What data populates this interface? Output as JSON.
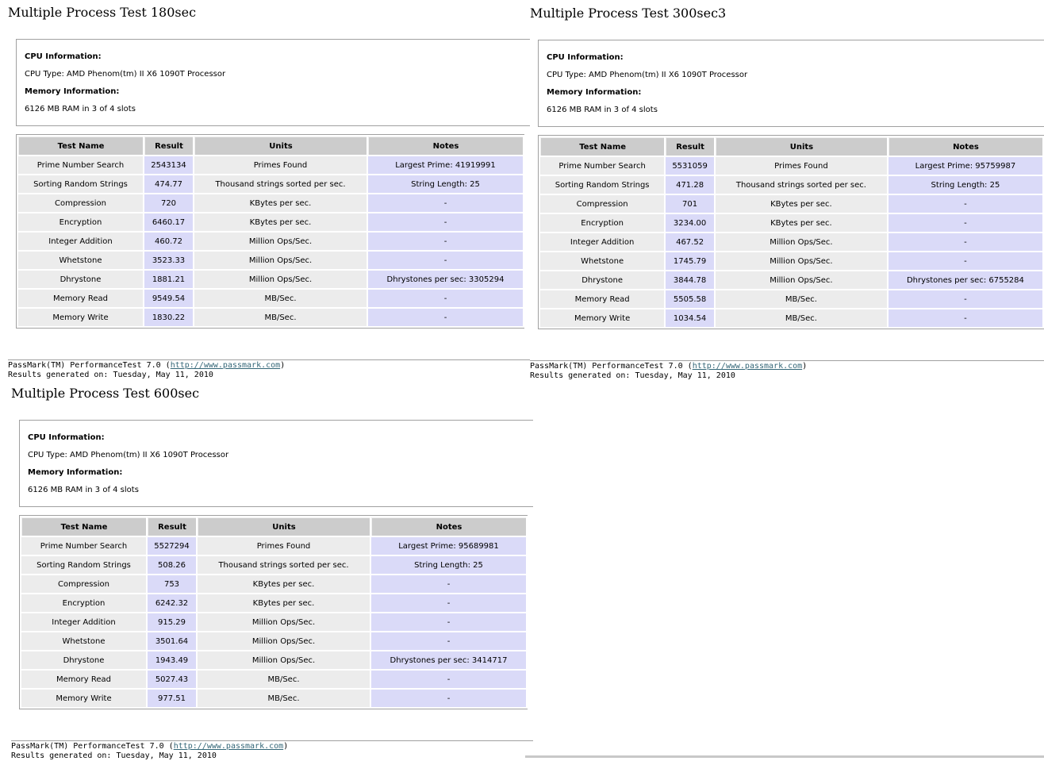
{
  "reports": [
    {
      "title": "Multiple Process Test 180sec",
      "cpu_heading": "CPU Information:",
      "cpu_type": "CPU Type: AMD Phenom(tm) II X6 1090T Processor",
      "mem_heading": "Memory Information:",
      "mem_value": "6126 MB RAM in 3 of 4 slots",
      "headers": [
        "Test Name",
        "Result",
        "Units",
        "Notes"
      ],
      "rows": [
        [
          "Prime Number Search",
          "2543134",
          "Primes Found",
          "Largest Prime: 41919991"
        ],
        [
          "Sorting Random Strings",
          "474.77",
          "Thousand strings sorted per sec.",
          "String Length: 25"
        ],
        [
          "Compression",
          "720",
          "KBytes per sec.",
          "-"
        ],
        [
          "Encryption",
          "6460.17",
          "KBytes per sec.",
          "-"
        ],
        [
          "Integer Addition",
          "460.72",
          "Million Ops/Sec.",
          "-"
        ],
        [
          "Whetstone",
          "3523.33",
          "Million Ops/Sec.",
          "-"
        ],
        [
          "Dhrystone",
          "1881.21",
          "Million Ops/Sec.",
          "Dhrystones per sec: 3305294"
        ],
        [
          "Memory Read",
          "9549.54",
          "MB/Sec.",
          "-"
        ],
        [
          "Memory Write",
          "1830.22",
          "MB/Sec.",
          "-"
        ]
      ],
      "footer_prefix": "PassMark(TM) PerformanceTest 7.0 (",
      "footer_link": "http://www.passmark.com",
      "footer_suffix": ")",
      "footer_date": "Results generated on: Tuesday, May 11, 2010"
    },
    {
      "title": "Multiple Process Test 300sec3",
      "cpu_heading": "CPU Information:",
      "cpu_type": "CPU Type: AMD Phenom(tm) II X6 1090T Processor",
      "mem_heading": "Memory Information:",
      "mem_value": "6126 MB RAM in 3 of 4 slots",
      "headers": [
        "Test Name",
        "Result",
        "Units",
        "Notes"
      ],
      "rows": [
        [
          "Prime Number Search",
          "5531059",
          "Primes Found",
          "Largest Prime: 95759987"
        ],
        [
          "Sorting Random Strings",
          "471.28",
          "Thousand strings sorted per sec.",
          "String Length: 25"
        ],
        [
          "Compression",
          "701",
          "KBytes per sec.",
          "-"
        ],
        [
          "Encryption",
          "3234.00",
          "KBytes per sec.",
          "-"
        ],
        [
          "Integer Addition",
          "467.52",
          "Million Ops/Sec.",
          "-"
        ],
        [
          "Whetstone",
          "1745.79",
          "Million Ops/Sec.",
          "-"
        ],
        [
          "Dhrystone",
          "3844.78",
          "Million Ops/Sec.",
          "Dhrystones per sec: 6755284"
        ],
        [
          "Memory Read",
          "5505.58",
          "MB/Sec.",
          "-"
        ],
        [
          "Memory Write",
          "1034.54",
          "MB/Sec.",
          "-"
        ]
      ],
      "footer_prefix": "PassMark(TM) PerformanceTest 7.0 (",
      "footer_link": "http://www.passmark.com",
      "footer_suffix": ")",
      "footer_date": "Results generated on: Tuesday, May 11, 2010"
    },
    {
      "title": "Multiple Process Test 600sec",
      "cpu_heading": "CPU Information:",
      "cpu_type": "CPU Type: AMD Phenom(tm) II X6 1090T Processor",
      "mem_heading": "Memory Information:",
      "mem_value": "6126 MB RAM in 3 of 4 slots",
      "headers": [
        "Test Name",
        "Result",
        "Units",
        "Notes"
      ],
      "rows": [
        [
          "Prime Number Search",
          "5527294",
          "Primes Found",
          "Largest Prime: 95689981"
        ],
        [
          "Sorting Random Strings",
          "508.26",
          "Thousand strings sorted per sec.",
          "String Length: 25"
        ],
        [
          "Compression",
          "753",
          "KBytes per sec.",
          "-"
        ],
        [
          "Encryption",
          "6242.32",
          "KBytes per sec.",
          "-"
        ],
        [
          "Integer Addition",
          "915.29",
          "Million Ops/Sec.",
          "-"
        ],
        [
          "Whetstone",
          "3501.64",
          "Million Ops/Sec.",
          "-"
        ],
        [
          "Dhrystone",
          "1943.49",
          "Million Ops/Sec.",
          "Dhrystones per sec: 3414717"
        ],
        [
          "Memory Read",
          "5027.43",
          "MB/Sec.",
          "-"
        ],
        [
          "Memory Write",
          "977.51",
          "MB/Sec.",
          "-"
        ]
      ],
      "footer_prefix": "PassMark(TM) PerformanceTest 7.0 (",
      "footer_link": "http://www.passmark.com",
      "footer_suffix": ")",
      "footer_date": "Results generated on: Tuesday, May 11, 2010"
    }
  ]
}
